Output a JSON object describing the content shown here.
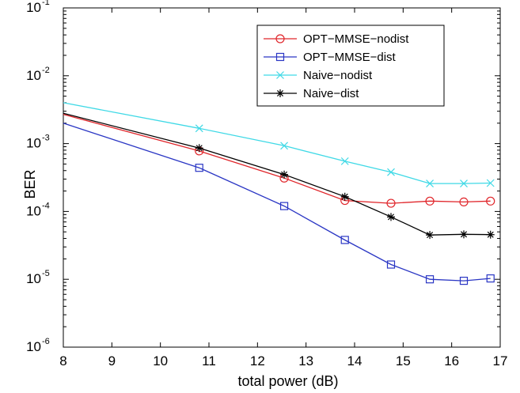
{
  "chart_data": {
    "type": "line",
    "title": "",
    "xlabel": "total power (dB)",
    "ylabel": "BER",
    "xlim": [
      8,
      17
    ],
    "ylim": [
      1e-06,
      0.1
    ],
    "yscale": "log",
    "grid": false,
    "legend_position": "top-right",
    "x_ticks": [
      8,
      9,
      10,
      11,
      12,
      13,
      14,
      15,
      16,
      17
    ],
    "y_ticks": [
      {
        "base": "10",
        "exp": "-6",
        "value": 1e-06
      },
      {
        "base": "10",
        "exp": "-5",
        "value": 1e-05
      },
      {
        "base": "10",
        "exp": "-4",
        "value": 0.0001
      },
      {
        "base": "10",
        "exp": "-3",
        "value": 0.001
      },
      {
        "base": "10",
        "exp": "-2",
        "value": 0.01
      },
      {
        "base": "10",
        "exp": "-1",
        "value": 0.1
      }
    ],
    "series": [
      {
        "name": "OPT−MMSE−nodist",
        "color": "#e0262b",
        "marker": "circle",
        "marker_at": [
          1,
          2,
          3,
          4,
          5,
          6,
          7
        ],
        "x": [
          8,
          10.8,
          12.55,
          13.8,
          14.75,
          15.55,
          16.25,
          16.8
        ],
        "y": [
          0.0027,
          0.00078,
          0.00031,
          0.000145,
          0.000132,
          0.000142,
          0.000138,
          0.000142
        ]
      },
      {
        "name": "OPT−MMSE−dist",
        "color": "#2a36c4",
        "marker": "square",
        "marker_at": [
          1,
          2,
          3,
          4,
          5,
          6,
          7
        ],
        "x": [
          8,
          10.8,
          12.55,
          13.8,
          14.75,
          15.55,
          16.25,
          16.8
        ],
        "y": [
          0.002,
          0.00044,
          0.00012,
          3.8e-05,
          1.65e-05,
          1e-05,
          9.5e-06,
          1.03e-05
        ]
      },
      {
        "name": "Naive−nodist",
        "color": "#3fd9e6",
        "marker": "x",
        "marker_at": [
          1,
          2,
          3,
          4,
          5,
          6,
          7
        ],
        "x": [
          8,
          10.8,
          12.55,
          13.8,
          14.75,
          15.55,
          16.25,
          16.8
        ],
        "y": [
          0.004,
          0.00168,
          0.00093,
          0.00055,
          0.00038,
          0.000258,
          0.000258,
          0.000262
        ]
      },
      {
        "name": "Naive−dist",
        "color": "#000000",
        "marker": "star",
        "marker_at": [
          1,
          2,
          3,
          4,
          5,
          6,
          7
        ],
        "x": [
          8,
          10.8,
          12.55,
          13.8,
          14.75,
          15.55,
          16.25,
          16.8
        ],
        "y": [
          0.0028,
          0.00086,
          0.00035,
          0.000165,
          8.3e-05,
          4.5e-05,
          4.6e-05,
          4.55e-05
        ]
      }
    ]
  }
}
